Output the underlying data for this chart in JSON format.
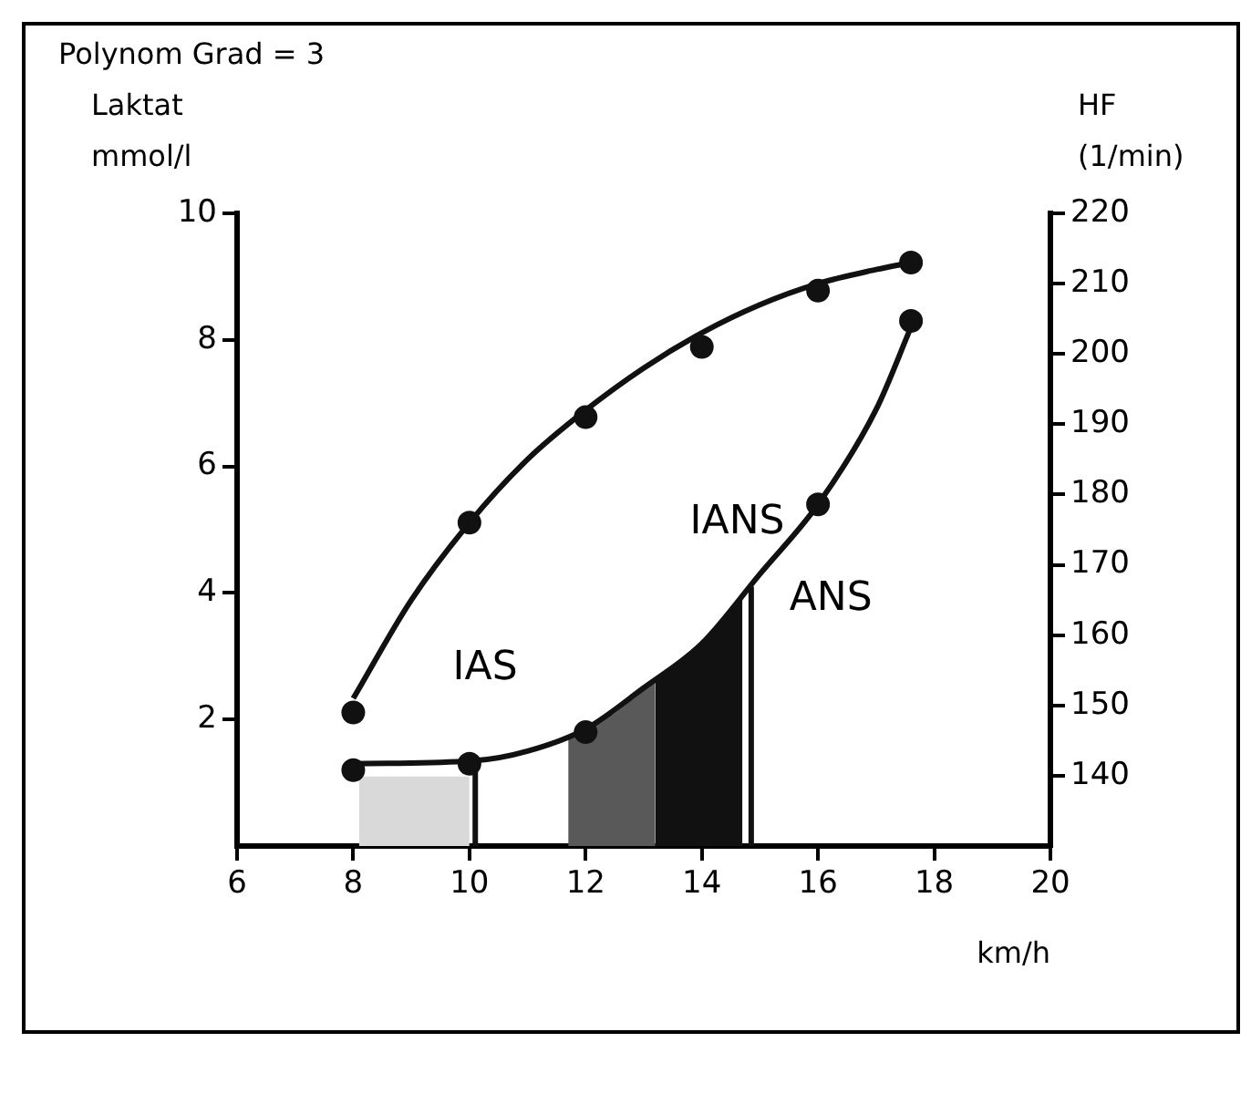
{
  "chart_data": {
    "type": "line",
    "title": "Polynom Grad = 3",
    "xlabel": "km/h",
    "ylabel": "Laktat\nmmol/l",
    "y2label": "HF\n(1/min)",
    "xlim": [
      6,
      20
    ],
    "xticks": [
      6,
      8,
      10,
      12,
      14,
      16,
      18,
      20
    ],
    "ylim": [
      0,
      10
    ],
    "yticks": [
      2,
      4,
      6,
      8,
      10
    ],
    "y2lim": [
      130,
      220
    ],
    "y2ticks": [
      140,
      150,
      160,
      170,
      180,
      190,
      200,
      210,
      220
    ],
    "grid": false,
    "legend": false,
    "series": [
      {
        "type": "area",
        "color": "#d9d9d9",
        "x": [
          8.1,
          10.0
        ],
        "values": [
          1.1,
          1.1
        ]
      },
      {
        "type": "area",
        "color": "#595959",
        "x": [
          11.7,
          12.5,
          13.2
        ],
        "values": [
          1.7,
          2.1,
          2.6
        ]
      },
      {
        "type": "area",
        "color": "#111111",
        "x": [
          13.2,
          14,
          14.7
        ],
        "values": [
          2.6,
          3.2,
          3.9
        ]
      },
      {
        "type": "line",
        "color": "#111111",
        "x": [
          10.1,
          10.1
        ],
        "values": [
          0,
          1.3
        ]
      },
      {
        "type": "line",
        "color": "#111111",
        "x": [
          14.85,
          14.85
        ],
        "values": [
          0,
          4.1
        ]
      },
      {
        "type": "line",
        "color": "#111111",
        "x": [
          8,
          10.1,
          11,
          12,
          13,
          14,
          15,
          16,
          17,
          17.6
        ],
        "values": [
          1.3,
          1.35,
          1.5,
          1.85,
          2.5,
          3.2,
          4.3,
          5.4,
          6.9,
          8.2
        ]
      },
      {
        "type": "line",
        "color": "#111111",
        "axis": "y2",
        "x": [
          8,
          9,
          10,
          11,
          12,
          13,
          14,
          15,
          16,
          17,
          17.6
        ],
        "values": [
          151,
          165,
          176,
          185,
          192,
          198,
          203,
          207,
          210,
          212,
          213
        ]
      },
      {
        "type": "scatter",
        "marker": "circle",
        "color": "#111111",
        "x": [
          8,
          10,
          12,
          16,
          17.6
        ],
        "values": [
          1.2,
          1.3,
          1.8,
          5.4,
          8.3
        ]
      },
      {
        "type": "scatter",
        "marker": "circle",
        "color": "#111111",
        "axis": "y2",
        "x": [
          8,
          10,
          12,
          14,
          16,
          17.6
        ],
        "values": [
          149,
          176,
          191,
          201,
          209,
          213
        ]
      }
    ],
    "annotations": [
      "IAS",
      "IANS",
      "ANS"
    ]
  }
}
